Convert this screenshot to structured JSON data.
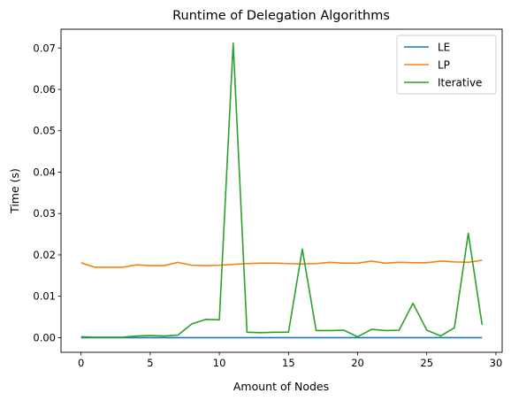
{
  "chart_data": {
    "type": "line",
    "title": "Runtime of Delegation Algorithms",
    "xlabel": "Amount of Nodes",
    "ylabel": "Time (s)",
    "xlim": [
      -1.45,
      30.45
    ],
    "ylim": [
      -0.00355,
      0.07455
    ],
    "xticks": [
      0,
      5,
      10,
      15,
      20,
      25,
      30
    ],
    "yticks": [
      0.0,
      0.01,
      0.02,
      0.03,
      0.04,
      0.05,
      0.06,
      0.07
    ],
    "xtick_labels": [
      "0",
      "5",
      "10",
      "15",
      "20",
      "25",
      "30"
    ],
    "ytick_labels": [
      "0.00",
      "0.01",
      "0.02",
      "0.03",
      "0.04",
      "0.05",
      "0.06",
      "0.07"
    ],
    "grid": false,
    "legend_position": "top-right",
    "x": [
      0,
      1,
      2,
      3,
      4,
      5,
      6,
      7,
      8,
      9,
      10,
      11,
      12,
      13,
      14,
      15,
      16,
      17,
      18,
      19,
      20,
      21,
      22,
      23,
      24,
      25,
      26,
      27,
      28,
      29
    ],
    "series": [
      {
        "name": "LE",
        "color": "#1f77b4",
        "values": [
          0,
          0,
          0,
          0,
          0,
          0,
          0,
          0,
          0,
          0,
          0,
          0,
          0,
          0,
          0,
          0,
          0,
          0,
          0,
          0,
          0,
          0,
          0,
          0,
          0,
          0,
          0,
          0,
          0,
          0
        ]
      },
      {
        "name": "LP",
        "color": "#ff7f0e",
        "values": [
          0.0181,
          0.017,
          0.017,
          0.017,
          0.0176,
          0.0174,
          0.0174,
          0.0182,
          0.0175,
          0.0174,
          0.0175,
          0.0177,
          0.0179,
          0.018,
          0.018,
          0.0179,
          0.0178,
          0.0179,
          0.0182,
          0.018,
          0.018,
          0.0185,
          0.018,
          0.0182,
          0.0181,
          0.0181,
          0.0185,
          0.0183,
          0.0182,
          0.0187
        ]
      },
      {
        "name": "Iterative",
        "color": "#2ca02c",
        "values": [
          0.0002,
          0.0001,
          0.0001,
          0.0001,
          0.0004,
          0.0005,
          0.0004,
          0.0006,
          0.0033,
          0.0044,
          0.0043,
          0.0712,
          0.0013,
          0.0012,
          0.0013,
          0.0013,
          0.0214,
          0.0017,
          0.0017,
          0.0018,
          0.0002,
          0.002,
          0.0017,
          0.0018,
          0.0083,
          0.0018,
          0.0004,
          0.0024,
          0.0252,
          0.0031
        ]
      }
    ]
  }
}
